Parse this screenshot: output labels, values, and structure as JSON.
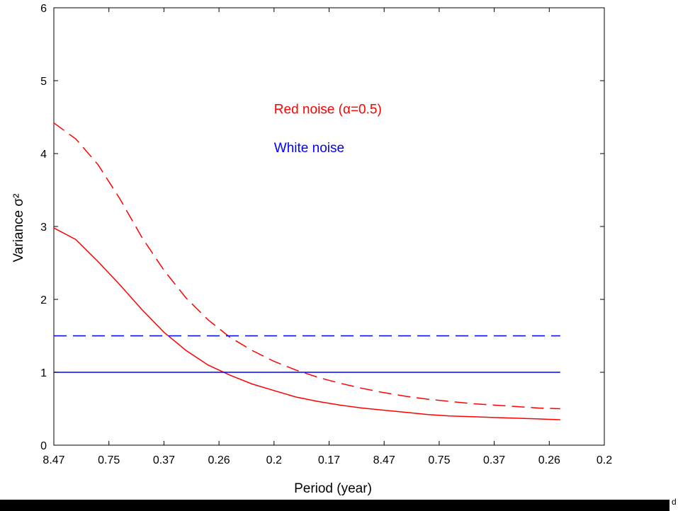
{
  "chart_data": {
    "type": "line",
    "title": "",
    "xlabel": "Period (year)",
    "ylabel": "Variance σ²",
    "ylim": [
      0,
      6
    ],
    "yticks": [
      "0",
      "1",
      "2",
      "3",
      "4",
      "5",
      "6"
    ],
    "xlim": [
      0,
      1
    ],
    "xticks": [
      {
        "label": "8.47",
        "pos": 0
      },
      {
        "label": "0.75",
        "pos": 0.1
      },
      {
        "label": "0.37",
        "pos": 0.2
      },
      {
        "label": "0.26",
        "pos": 0.3
      },
      {
        "label": "0.2",
        "pos": 0.4
      },
      {
        "label": "0.17",
        "pos": 0.5
      },
      {
        "label": "8.47",
        "pos": 0.6
      },
      {
        "label": "0.75",
        "pos": 0.7
      },
      {
        "label": "0.37",
        "pos": 0.8
      },
      {
        "label": "0.26",
        "pos": 0.9
      },
      {
        "label": "0.2",
        "pos": 1.0
      }
    ],
    "grid": false,
    "series": [
      {
        "color": "#ff0000",
        "style": "solid",
        "x": [
          0.0,
          0.04,
          0.08,
          0.12,
          0.16,
          0.2,
          0.24,
          0.28,
          0.32,
          0.36,
          0.4,
          0.44,
          0.48,
          0.52,
          0.56,
          0.6,
          0.64,
          0.68,
          0.72,
          0.76,
          0.8,
          0.84,
          0.88,
          0.92
        ],
        "y": [
          2.98,
          2.82,
          2.52,
          2.2,
          1.86,
          1.55,
          1.3,
          1.1,
          0.96,
          0.84,
          0.75,
          0.66,
          0.6,
          0.55,
          0.51,
          0.48,
          0.45,
          0.42,
          0.4,
          0.39,
          0.38,
          0.37,
          0.36,
          0.35
        ]
      },
      {
        "color": "#ff0000",
        "style": "dashed",
        "x": [
          0.0,
          0.04,
          0.08,
          0.12,
          0.16,
          0.2,
          0.24,
          0.28,
          0.32,
          0.36,
          0.4,
          0.44,
          0.48,
          0.52,
          0.56,
          0.6,
          0.64,
          0.68,
          0.72,
          0.76,
          0.8,
          0.84,
          0.88,
          0.92
        ],
        "y": [
          4.42,
          4.2,
          3.85,
          3.38,
          2.85,
          2.4,
          2.02,
          1.72,
          1.48,
          1.3,
          1.15,
          1.03,
          0.93,
          0.85,
          0.78,
          0.72,
          0.67,
          0.63,
          0.6,
          0.57,
          0.55,
          0.53,
          0.51,
          0.5
        ]
      },
      {
        "name": "White noise",
        "color": "#0000ff",
        "style": "solid",
        "x": [
          0.0,
          0.92
        ],
        "y": [
          1.0,
          1.0
        ]
      },
      {
        "color": "#0000ff",
        "style": "dashed",
        "x": [
          0.0,
          0.92
        ],
        "y": [
          1.5,
          1.5
        ]
      }
    ],
    "annotations": [
      {
        "text": "Red noise (α=0.5)",
        "color": "#ff0000",
        "x": 0.4,
        "y": 4.55
      },
      {
        "text": "White noise",
        "color": "#0000ff",
        "x": 0.4,
        "y": 4.02
      }
    ]
  },
  "footer": {
    "corner_text": "d"
  }
}
